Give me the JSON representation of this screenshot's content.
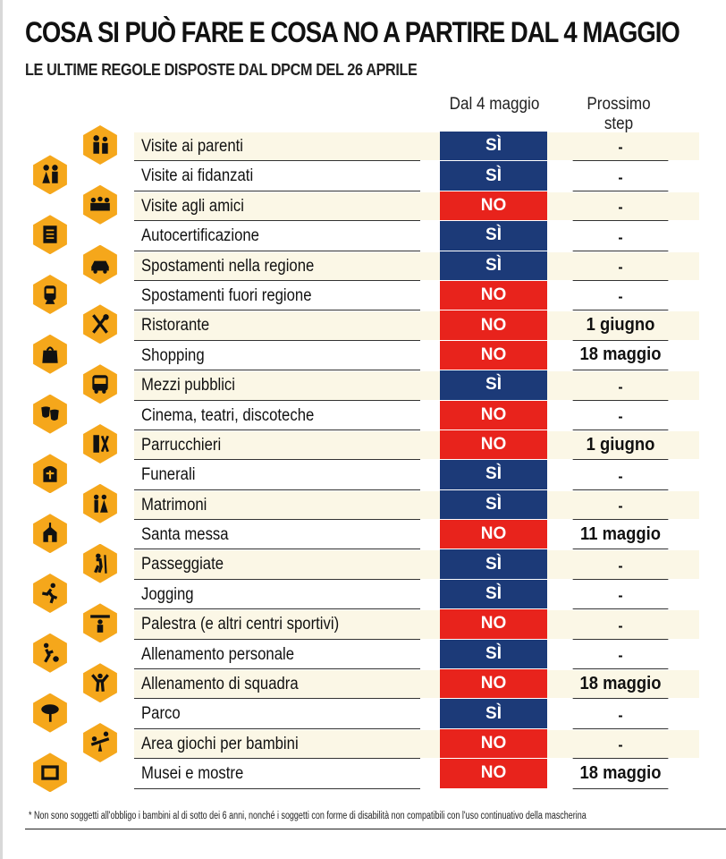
{
  "header": {
    "title": "COSA SI PUÒ FARE E COSA NO A PARTIRE DAL 4 MAGGIO",
    "subtitle": "LE ULTIME REGOLE DISPOSTE DAL DPCM DEL 26 APRILE"
  },
  "columns": {
    "col1": "Dal 4 maggio",
    "col2_line1": "Prossimo",
    "col2_line2": "step"
  },
  "colors": {
    "si": "#1c3a78",
    "no": "#e8231c",
    "icon_hex": "#f5a71b"
  },
  "rows": [
    {
      "label": "Visite ai parenti",
      "status": "SÌ",
      "next": "-"
    },
    {
      "label": "Visite ai fidanzati",
      "status": "SÌ",
      "next": "-"
    },
    {
      "label": "Visite agli amici",
      "status": "NO",
      "next": "-"
    },
    {
      "label": "Autocertificazione",
      "status": "SÌ",
      "next": "-"
    },
    {
      "label": "Spostamenti nella regione",
      "status": "SÌ",
      "next": "-"
    },
    {
      "label": "Spostamenti fuori regione",
      "status": "NO",
      "next": "-"
    },
    {
      "label": "Ristorante",
      "status": "NO",
      "next": "1 giugno"
    },
    {
      "label": "Shopping",
      "status": "NO",
      "next": "18 maggio"
    },
    {
      "label": "Mezzi pubblici",
      "status": "SÌ",
      "next": "-"
    },
    {
      "label": "Cinema, teatri, discoteche",
      "status": "NO",
      "next": "-"
    },
    {
      "label": "Parrucchieri",
      "status": "NO",
      "next": "1 giugno"
    },
    {
      "label": "Funerali",
      "status": "SÌ",
      "next": "-"
    },
    {
      "label": "Matrimoni",
      "status": "SÌ",
      "next": "-"
    },
    {
      "label": "Santa messa",
      "status": "NO",
      "next": "11 maggio"
    },
    {
      "label": "Passeggiate",
      "status": "SÌ",
      "next": "-"
    },
    {
      "label": "Jogging",
      "status": "SÌ",
      "next": "-"
    },
    {
      "label": "Palestra (e altri centri sportivi)",
      "status": "NO",
      "next": "-"
    },
    {
      "label": "Allenamento personale",
      "status": "SÌ",
      "next": "-"
    },
    {
      "label": "Allenamento di squadra",
      "status": "NO",
      "next": "18 maggio"
    },
    {
      "label": "Parco",
      "status": "SÌ",
      "next": "-"
    },
    {
      "label": "Area giochi per bambini",
      "status": "NO",
      "next": "-"
    },
    {
      "label": "Musei e mostre",
      "status": "NO",
      "next": "18 maggio"
    }
  ],
  "icons": [
    "family-icon",
    "couple-icon",
    "friends-group-icon",
    "document-icon",
    "car-icon",
    "train-icon",
    "fork-knife-icon",
    "shopping-bag-icon",
    "bus-icon",
    "theater-masks-icon",
    "comb-scissors-icon",
    "tombstone-cross-icon",
    "wedding-couple-icon",
    "church-icon",
    "hiker-icon",
    "runner-icon",
    "weightlifter-icon",
    "soccer-player-icon",
    "exercise-figure-icon",
    "tree-icon",
    "seesaw-icon",
    "museum-frame-icon"
  ],
  "footnote": "* Non sono soggetti all'obbligo i bambini al di sotto dei 6 anni, nonché i soggetti con forme di disabilità non compatibili con l'uso continuativo della mascherina"
}
